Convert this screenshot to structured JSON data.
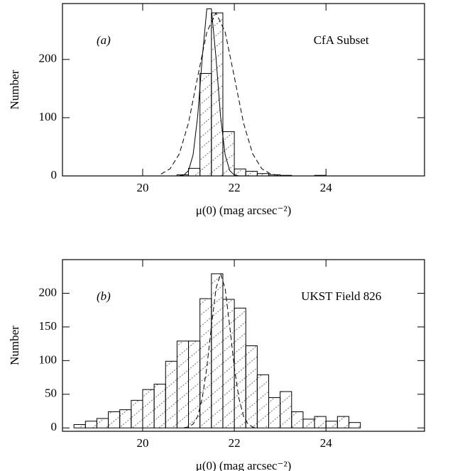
{
  "chart_data": [
    {
      "type": "histogram",
      "annotation": "(a)",
      "label": "CfA Subset",
      "xlabel": "μ(0) (mag arcsec⁻²)",
      "ylabel": "Number",
      "xlim": [
        18.25,
        26.15
      ],
      "ylim": [
        0,
        296
      ],
      "xticks": [
        20,
        22,
        24
      ],
      "yticks": [
        0,
        100,
        200
      ],
      "bins": [
        18.5,
        18.75,
        19.0,
        19.25,
        19.5,
        19.75,
        20.0,
        20.25,
        20.5,
        20.75,
        21.0,
        21.25,
        21.5,
        21.75,
        22.0,
        22.25,
        22.5,
        22.75,
        23.0,
        23.25,
        23.5,
        23.75,
        24.0,
        24.25,
        24.5,
        24.75
      ],
      "values": [
        0,
        0,
        0,
        0,
        0,
        0,
        0,
        0,
        0,
        2,
        13,
        176,
        280,
        76,
        12,
        8,
        4,
        2,
        1,
        0,
        0,
        1,
        0,
        0,
        0
      ],
      "curves": [
        {
          "style": "solid",
          "x": [
            20.8,
            20.9,
            21.0,
            21.1,
            21.2,
            21.3,
            21.4,
            21.5,
            21.6,
            21.7,
            21.8,
            21.9,
            22.0,
            22.1
          ],
          "values": [
            0.2,
            1.6,
            9.1,
            36,
            102,
            203,
            287,
            287,
            203,
            102,
            36,
            9.1,
            1.6,
            0.2
          ]
        },
        {
          "style": "dashed",
          "x": [
            20.4,
            20.6,
            20.8,
            21.0,
            21.2,
            21.4,
            21.6,
            21.8,
            22.0,
            22.2,
            22.4,
            22.6,
            22.8,
            23.0
          ],
          "values": [
            3.1,
            12.3,
            37.9,
            91,
            170,
            247,
            280,
            247,
            170,
            91,
            37.9,
            12.3,
            3.1,
            0.6
          ]
        }
      ]
    },
    {
      "type": "histogram",
      "annotation": "(b)",
      "label": "UKST Field 826",
      "xlabel": "μ(0) (mag arcsec⁻²)",
      "ylabel": "Number",
      "xlim": [
        18.25,
        26.15
      ],
      "ylim": [
        -5,
        250
      ],
      "xticks": [
        20,
        22,
        24
      ],
      "yticks": [
        0,
        50,
        100,
        150,
        200
      ],
      "bins": [
        18.5,
        18.75,
        19.0,
        19.25,
        19.5,
        19.75,
        20.0,
        20.25,
        20.5,
        20.75,
        21.0,
        21.25,
        21.5,
        21.75,
        22.0,
        22.25,
        22.5,
        22.75,
        23.0,
        23.25,
        23.5,
        23.75,
        24.0,
        24.25,
        24.5,
        24.75
      ],
      "values": [
        5,
        10,
        14,
        24,
        27,
        41,
        57,
        65,
        99,
        129,
        129,
        192,
        229,
        191,
        178,
        122,
        79,
        45,
        54,
        24,
        13,
        17,
        10,
        17,
        8
      ],
      "curves": [
        {
          "style": "dashed",
          "x": [
            20.9,
            21.0,
            21.1,
            21.2,
            21.3,
            21.4,
            21.5,
            21.6,
            21.7,
            21.8,
            21.9,
            22.0,
            22.1,
            22.2,
            22.3,
            22.4,
            22.5
          ],
          "values": [
            0.3,
            1.4,
            5.6,
            17.3,
            44,
            90,
            151,
            207,
            229,
            207,
            151,
            90,
            44,
            17.3,
            5.6,
            1.4,
            0.3
          ]
        }
      ]
    }
  ]
}
